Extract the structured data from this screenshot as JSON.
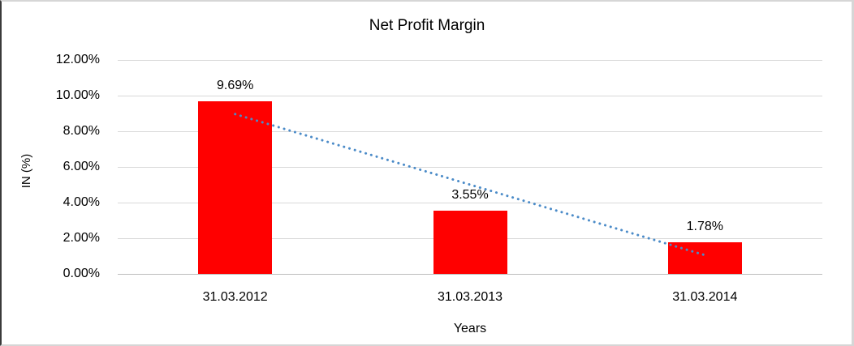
{
  "chart_data": {
    "type": "bar",
    "title": "Net Profit Margin",
    "xlabel": "Years",
    "ylabel": "IN (%)",
    "categories": [
      "31.03.2012",
      "31.03.2013",
      "31.03.2014"
    ],
    "series": [
      {
        "name": "Net Profit Margin",
        "values": [
          9.69,
          3.55,
          1.78
        ]
      }
    ],
    "data_labels": [
      "9.69%",
      "3.55%",
      "1.78%"
    ],
    "y_ticks": [
      {
        "label": "12.00%",
        "value": 12
      },
      {
        "label": "10.00%",
        "value": 10
      },
      {
        "label": "8.00%",
        "value": 8
      },
      {
        "label": "6.00%",
        "value": 6
      },
      {
        "label": "4.00%",
        "value": 4
      },
      {
        "label": "2.00%",
        "value": 2
      },
      {
        "label": "0.00%",
        "value": 0
      }
    ],
    "ylim": [
      0,
      12
    ],
    "grid": true,
    "legend": "none",
    "bar_color": "#ff0000",
    "gridline_color": "#d9d9d9",
    "trendline": {
      "type": "linear",
      "style": "dotted",
      "color": "#4b8bc8"
    }
  }
}
